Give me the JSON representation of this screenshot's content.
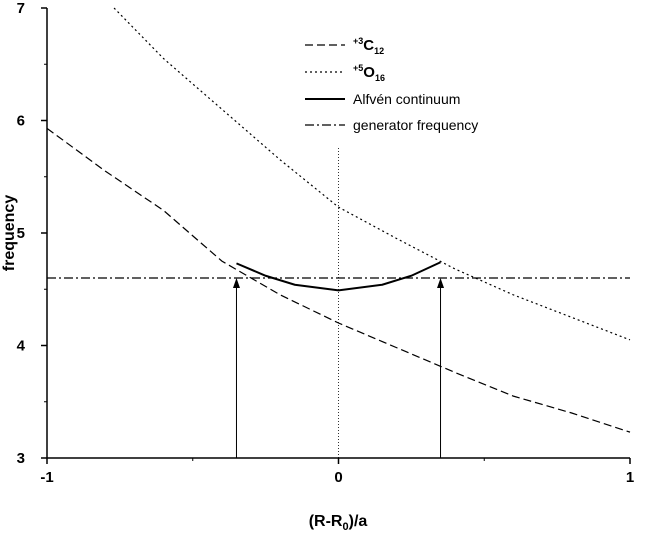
{
  "chart_data": {
    "type": "line",
    "xlabel_parts": [
      "(R-R",
      "0",
      ")/a"
    ],
    "ylabel": "frequency",
    "xlim": [
      -1,
      1
    ],
    "ylim": [
      3,
      7
    ],
    "xticks": [
      -1,
      0,
      1
    ],
    "yticks": [
      3,
      4,
      5,
      6,
      7
    ],
    "xminor": [
      -0.5,
      0.5
    ],
    "yminor": [
      3.5,
      4.5,
      5.5,
      6.5
    ],
    "series": [
      {
        "name": "C",
        "superscript": "+3",
        "subscript": "12",
        "color": "#000000",
        "style": "dashed",
        "x": [
          -1,
          -0.8,
          -0.6,
          -0.4,
          -0.2,
          0,
          0.2,
          0.4,
          0.6,
          0.8,
          1
        ],
        "values": [
          5.93,
          5.55,
          5.2,
          4.75,
          4.45,
          4.2,
          3.98,
          3.76,
          3.55,
          3.4,
          3.23
        ]
      },
      {
        "name": "O",
        "superscript": "+5",
        "subscript": "16",
        "color": "#000000",
        "style": "dotted",
        "x": [
          -0.77,
          -0.6,
          -0.4,
          -0.2,
          0,
          0.2,
          0.4,
          0.6,
          0.8,
          1
        ],
        "values": [
          7.0,
          6.55,
          6.1,
          5.65,
          5.23,
          4.95,
          4.68,
          4.45,
          4.25,
          4.05
        ]
      },
      {
        "name": "Alfvén continuum",
        "color": "#000000",
        "style": "solid",
        "x": [
          -0.35,
          -0.25,
          -0.15,
          0,
          0.15,
          0.25,
          0.35
        ],
        "values": [
          4.73,
          4.62,
          4.54,
          4.49,
          4.54,
          4.62,
          4.74
        ]
      },
      {
        "name": "generator frequency",
        "color": "#000000",
        "style": "dashdot",
        "x": [
          -1,
          1
        ],
        "values": [
          4.6,
          4.6
        ]
      }
    ],
    "arrows": [
      {
        "x": -0.35,
        "from": 3,
        "to": 4.6
      },
      {
        "x": 0.35,
        "from": 3,
        "to": 4.6
      }
    ],
    "center_line": {
      "x": 0,
      "from": 3,
      "to": 5.77
    }
  }
}
